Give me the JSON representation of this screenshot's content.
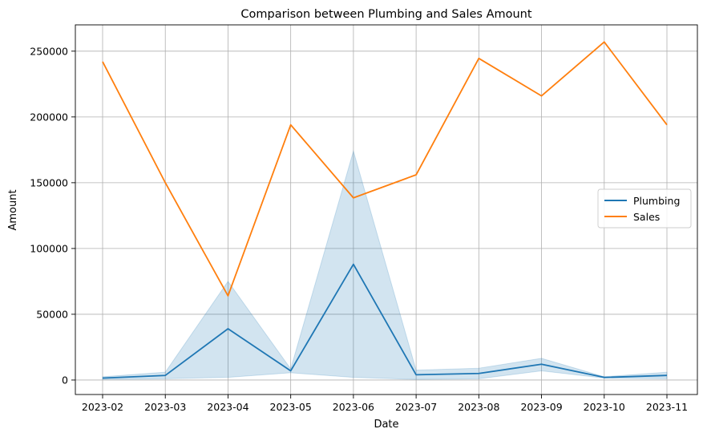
{
  "chart_data": {
    "type": "line",
    "title": "Comparison between Plumbing and Sales Amount",
    "xlabel": "Date",
    "ylabel": "Amount",
    "x": [
      "2023-02",
      "2023-03",
      "2023-04",
      "2023-05",
      "2023-06",
      "2023-07",
      "2023-08",
      "2023-09",
      "2023-10",
      "2023-11"
    ],
    "ylim": [
      -11000,
      270000
    ],
    "yticks": [
      0,
      50000,
      100000,
      150000,
      200000,
      250000
    ],
    "grid": true,
    "legend_position": "center-right",
    "series": [
      {
        "name": "Plumbing",
        "color": "#1f77b4",
        "values": [
          1500,
          3500,
          39000,
          7000,
          88000,
          4000,
          5000,
          12000,
          2000,
          3500
        ],
        "band_low": [
          500,
          1000,
          2000,
          5500,
          2000,
          500,
          1000,
          7000,
          1500,
          1000
        ],
        "band_high": [
          2500,
          6000,
          75000,
          8500,
          174000,
          7500,
          9000,
          16500,
          2500,
          6000
        ]
      },
      {
        "name": "Sales",
        "color": "#ff7f0e",
        "values": [
          242000,
          150000,
          64000,
          194000,
          138500,
          156000,
          244500,
          216000,
          257000,
          194000
        ]
      }
    ]
  }
}
